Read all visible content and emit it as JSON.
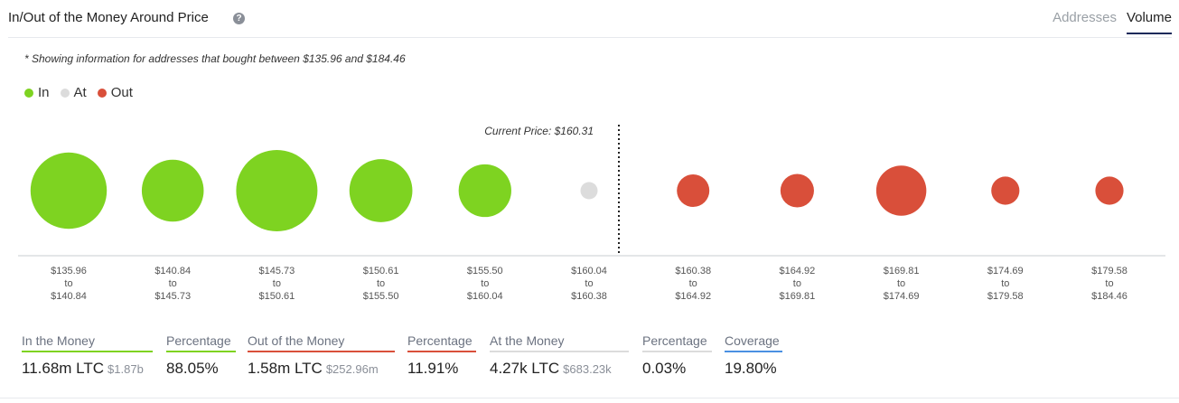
{
  "header": {
    "title": "In/Out of the Money Around Price",
    "tabs": [
      {
        "label": "Addresses",
        "active": false
      },
      {
        "label": "Volume",
        "active": true
      }
    ]
  },
  "note": "* Showing information for addresses that bought between $135.96 and $184.46",
  "legend": [
    {
      "label": "In",
      "color": "#7ed321"
    },
    {
      "label": "At",
      "color": "#dcdcdc"
    },
    {
      "label": "Out",
      "color": "#d94f3a"
    }
  ],
  "colors": {
    "in": "#7ed321",
    "at": "#dcdcdc",
    "out": "#d94f3a",
    "coverage": "#4a90e2"
  },
  "chart_data": {
    "type": "scatter",
    "current_price_label": "Current Price: $160.31",
    "buckets": [
      {
        "from": "$135.96",
        "to": "$140.84",
        "status": "in",
        "size": 0.88
      },
      {
        "from": "$140.84",
        "to": "$145.73",
        "status": "in",
        "size": 0.58
      },
      {
        "from": "$145.73",
        "to": "$150.61",
        "status": "in",
        "size": 1.0
      },
      {
        "from": "$150.61",
        "to": "$155.50",
        "status": "in",
        "size": 0.6
      },
      {
        "from": "$155.50",
        "to": "$160.04",
        "status": "in",
        "size": 0.42
      },
      {
        "from": "$160.04",
        "to": "$160.38",
        "status": "at",
        "size": 0.04
      },
      {
        "from": "$160.38",
        "to": "$164.92",
        "status": "out",
        "size": 0.16
      },
      {
        "from": "$164.92",
        "to": "$169.81",
        "status": "out",
        "size": 0.17
      },
      {
        "from": "$169.81",
        "to": "$174.69",
        "status": "out",
        "size": 0.38
      },
      {
        "from": "$174.69",
        "to": "$179.58",
        "status": "out",
        "size": 0.12
      },
      {
        "from": "$179.58",
        "to": "$184.46",
        "status": "out",
        "size": 0.12
      }
    ],
    "to_word": "to"
  },
  "stats": [
    {
      "key": "in",
      "label": "In the Money",
      "value": "11.68m LTC",
      "sub": "$1.87b",
      "color": "#7ed321"
    },
    {
      "key": "in_pct",
      "label": "Percentage",
      "value": "88.05%",
      "sub": "",
      "color": "#7ed321"
    },
    {
      "key": "out",
      "label": "Out of the Money",
      "value": "1.58m LTC",
      "sub": "$252.96m",
      "color": "#d94f3a"
    },
    {
      "key": "out_pct",
      "label": "Percentage",
      "value": "11.91%",
      "sub": "",
      "color": "#d94f3a"
    },
    {
      "key": "at",
      "label": "At the Money",
      "value": "4.27k LTC",
      "sub": "$683.23k",
      "color": "#dcdcdc"
    },
    {
      "key": "at_pct",
      "label": "Percentage",
      "value": "0.03%",
      "sub": "",
      "color": "#dcdcdc"
    },
    {
      "key": "coverage",
      "label": "Coverage",
      "value": "19.80%",
      "sub": "",
      "color": "#4a90e2"
    }
  ]
}
